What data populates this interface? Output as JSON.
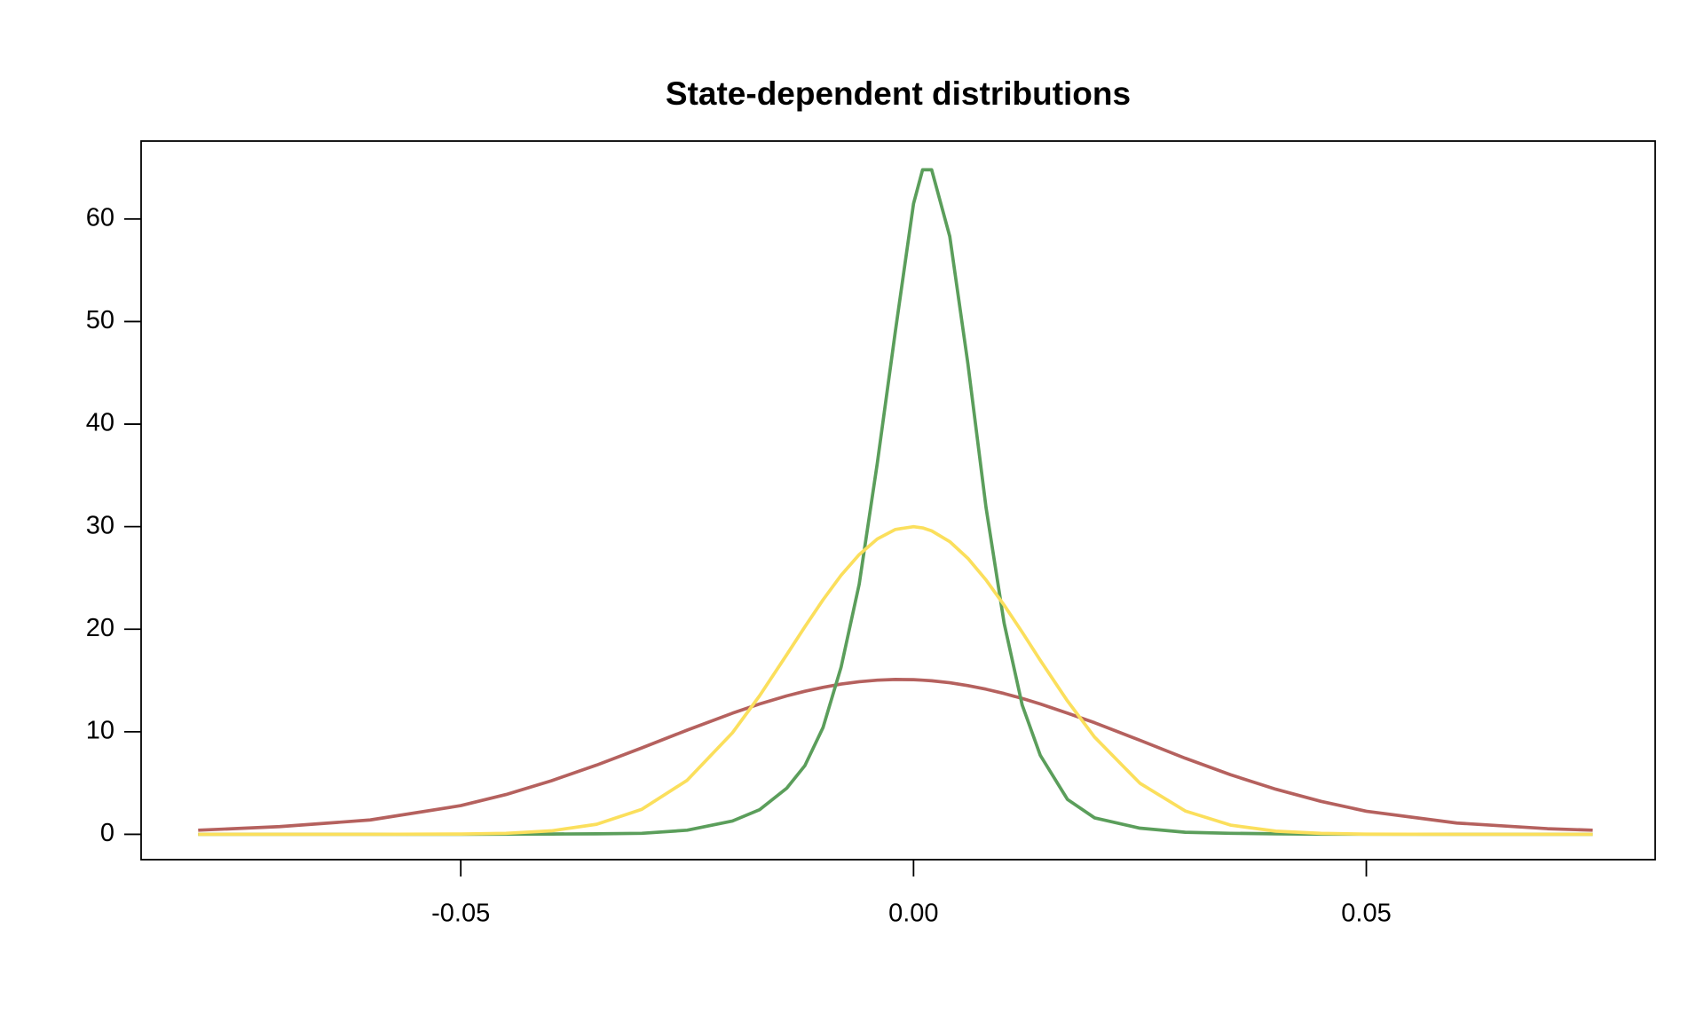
{
  "chart_data": {
    "type": "line",
    "title": "State-dependent distributions",
    "x": [
      -0.079,
      -0.07,
      -0.06,
      -0.05,
      -0.045,
      -0.04,
      -0.035,
      -0.03,
      -0.025,
      -0.02,
      -0.017,
      -0.014,
      -0.012,
      -0.01,
      -0.008,
      -0.006,
      -0.004,
      -0.002,
      0,
      0.001,
      0.002,
      0.004,
      0.006,
      0.008,
      0.01,
      0.012,
      0.014,
      0.017,
      0.02,
      0.025,
      0.03,
      0.035,
      0.04,
      0.045,
      0.05,
      0.06,
      0.07,
      0.075
    ],
    "series": [
      {
        "color": "#b5615e",
        "values": [
          0.4,
          0.75,
          1.4,
          2.8,
          3.88,
          5.22,
          6.75,
          8.43,
          10.16,
          11.81,
          12.71,
          13.5,
          13.95,
          14.33,
          14.65,
          14.88,
          15.03,
          15.1,
          15.08,
          15.03,
          14.97,
          14.78,
          14.5,
          14.15,
          13.73,
          13.25,
          12.71,
          11.81,
          10.88,
          9.17,
          7.42,
          5.81,
          4.4,
          3.21,
          2.25,
          1.1,
          0.55,
          0.4
        ]
      },
      {
        "color": "#5b9e5b",
        "values": [
          0,
          0,
          0,
          0,
          0.01,
          0.03,
          0.05,
          0.1,
          0.4,
          1.3,
          2.4,
          4.5,
          6.7,
          10.4,
          16.3,
          24.4,
          36.2,
          49.1,
          61.5,
          64.8,
          64.8,
          58.3,
          45.9,
          31.9,
          20.6,
          12.6,
          7.7,
          3.4,
          1.6,
          0.6,
          0.2,
          0.1,
          0.05,
          0.02,
          0.01,
          0,
          0,
          0
        ]
      },
      {
        "color": "#fbdf5c",
        "values": [
          0,
          0,
          0,
          0.03,
          0.1,
          0.34,
          0.98,
          2.44,
          5.27,
          9.9,
          13.51,
          17.52,
          20.24,
          22.86,
          25.26,
          27.28,
          28.8,
          29.73,
          30,
          29.88,
          29.59,
          28.54,
          26.91,
          24.81,
          22.35,
          19.71,
          16.96,
          13,
          9.47,
          4.98,
          2.28,
          0.9,
          0.31,
          0.09,
          0.02,
          0,
          0,
          0
        ]
      }
    ],
    "xlim": [
      -0.0853,
      0.0819
    ],
    "xticks": [
      {
        "value": -0.05,
        "label": "-0.05"
      },
      {
        "value": 0,
        "label": "0.00"
      },
      {
        "value": 0.05,
        "label": "0.05"
      }
    ],
    "ylim": [
      -2.47,
      67.6
    ],
    "yticks": [
      0,
      10,
      20,
      30,
      40,
      50,
      60
    ],
    "grid": false
  }
}
